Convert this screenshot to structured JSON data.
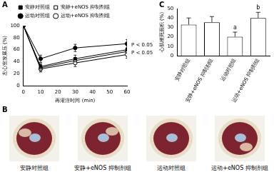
{
  "chart_data": [
    {
      "type": "line",
      "panel_label": "A",
      "x_label": "再灌注时间 (min)",
      "y_label": "左心室发展压 (%)",
      "x": [
        0,
        10,
        30,
        60
      ],
      "series": [
        {
          "name": "安静对照组",
          "color": "#000000",
          "marker": "filled_square",
          "line_style": "solid",
          "values": [
            100,
            32,
            45,
            60
          ],
          "errors": [
            0,
            5,
            6,
            7
          ]
        },
        {
          "name": "安静+eNOS 抑制剂组",
          "color": "#000000",
          "marker": "open_square",
          "line_style": "solid",
          "values": [
            100,
            30,
            42,
            57
          ],
          "errors": [
            0,
            5,
            5,
            6
          ]
        },
        {
          "name": "运动对照组",
          "color": "#000000",
          "marker": "filled_circle",
          "line_style": "solid",
          "values": [
            100,
            45,
            63,
            70
          ],
          "errors": [
            0,
            6,
            6,
            7
          ]
        },
        {
          "name": "运动+eNOS 抑制剂组",
          "color": "#000000",
          "marker": "open_circle",
          "line_style": "solid",
          "values": [
            100,
            28,
            38,
            52
          ],
          "errors": [
            0,
            5,
            6,
            6
          ]
        }
      ],
      "xlim": [
        0,
        60
      ],
      "xticks": [
        0,
        10,
        20,
        30,
        40,
        50,
        60
      ],
      "ylim": [
        0,
        100
      ],
      "yticks": [
        0,
        20,
        40,
        60,
        80,
        100
      ],
      "grid": false,
      "legend": "top",
      "annotations": [
        {
          "text": "P < 0.05",
          "x": 60,
          "y": 68
        },
        {
          "text": "P < 0.05",
          "x": 60,
          "y": 55
        }
      ]
    },
    {
      "type": "bar",
      "panel_label": "C",
      "y_label": "心肌梗死面积 (%)",
      "categories": [
        "安静对照组",
        "安静+eNOS 抑制剂组",
        "运动对照组",
        "运动+eNOS 抑制剂组"
      ],
      "values": [
        33,
        35.5,
        20,
        40
      ],
      "errors": [
        7,
        6,
        5,
        6
      ],
      "color": "#ffffff",
      "ylim": [
        0,
        50
      ],
      "yticks": [
        0,
        10,
        20,
        30,
        40,
        50
      ],
      "grid": false,
      "annotations": [
        {
          "text": "a",
          "category": "运动对照组"
        },
        {
          "text": "b",
          "category": "运动+eNOS 抑制剂组"
        }
      ]
    }
  ],
  "panel_b": {
    "panel_label": "B",
    "images": [
      "安静对照组",
      "安静+eNOS 抑制剂组",
      "运动对照组",
      "运动+eNOS 抑制剂组"
    ]
  }
}
